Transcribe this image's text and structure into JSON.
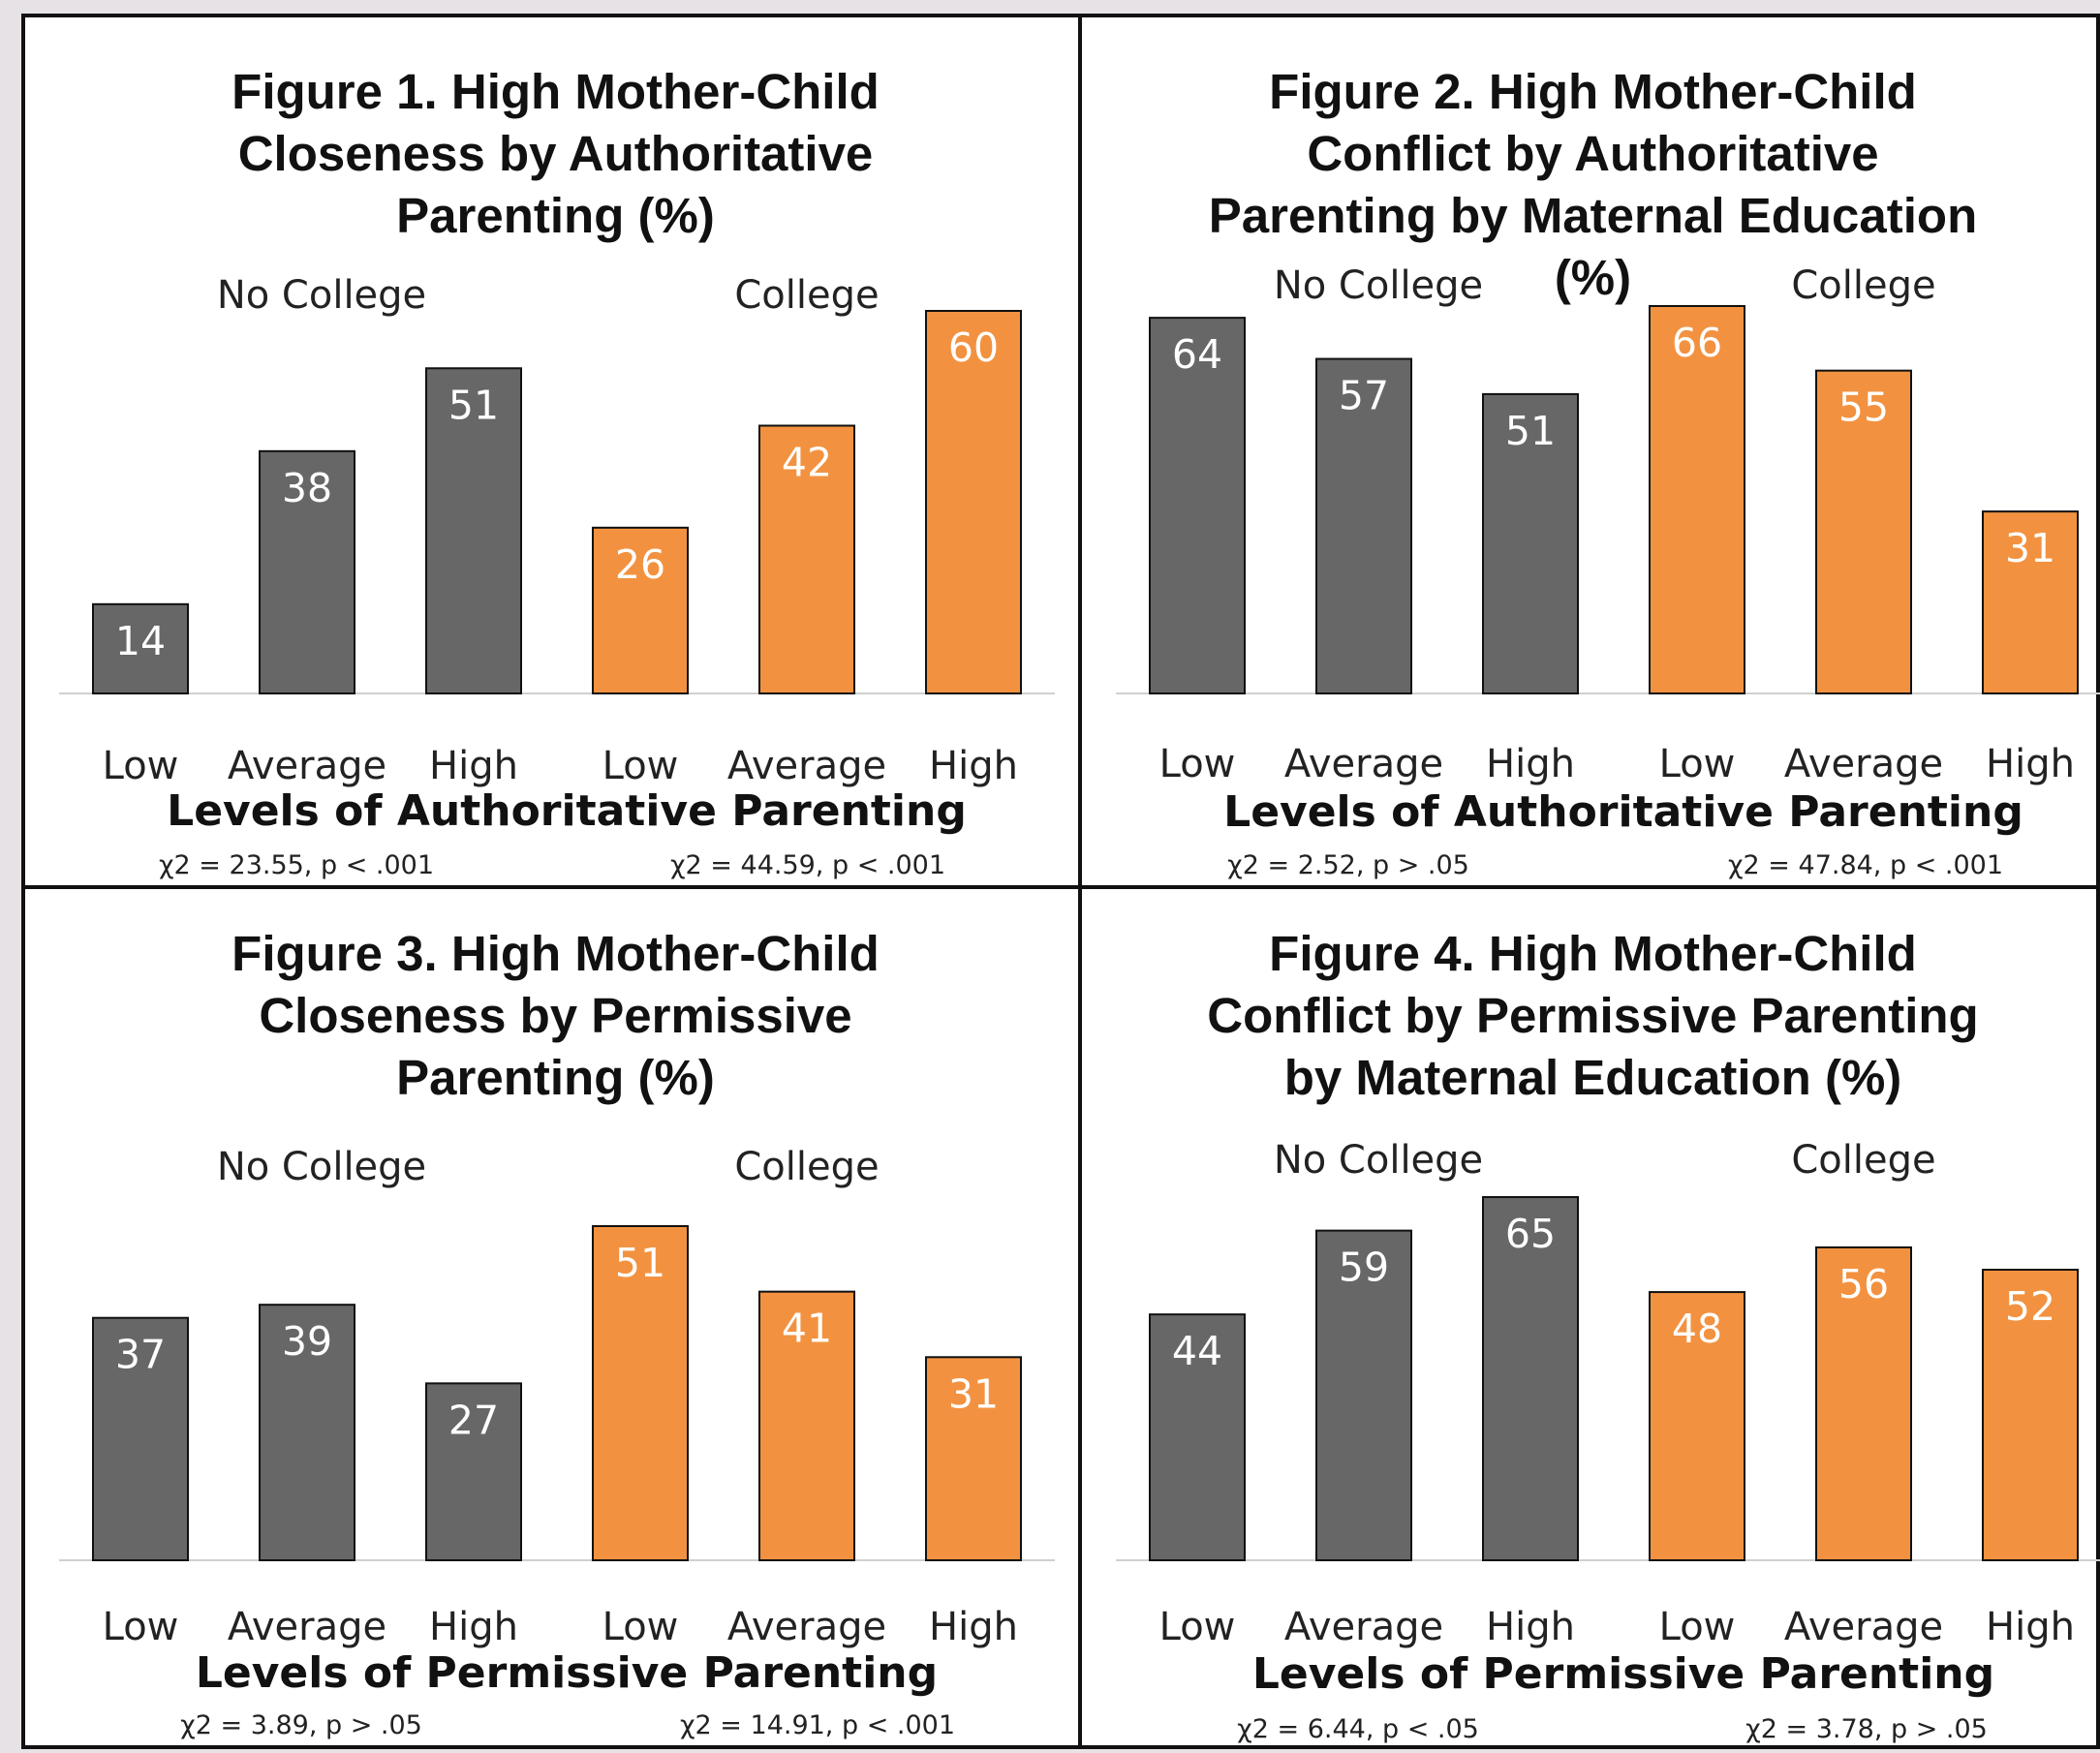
{
  "colors": {
    "no_college": "#676767",
    "college": "#f29240"
  },
  "chart_data": [
    {
      "type": "bar",
      "title_lines": [
        "Figure 1. High Mother-Child",
        "Closeness by Authoritative",
        "Parenting (%)"
      ],
      "groups": [
        "No College",
        "College"
      ],
      "categories": [
        "Low",
        "Average",
        "High",
        "Low",
        "Average",
        "High"
      ],
      "values": [
        14,
        38,
        51,
        26,
        42,
        60
      ],
      "xlabel": "Levels of Authoritative Parenting",
      "stats": [
        "χ2 = 23.55, p < .001",
        "χ2 = 44.59, p < .001"
      ],
      "ylim": [
        0,
        60
      ]
    },
    {
      "type": "bar",
      "title_lines": [
        "Figure 2. High Mother-Child",
        "Conflict by Authoritative",
        "Parenting by Maternal Education",
        "(%)"
      ],
      "groups": [
        "No College",
        "College"
      ],
      "categories": [
        "Low",
        "Average",
        "High",
        "Low",
        "Average",
        "High"
      ],
      "values": [
        64,
        57,
        51,
        66,
        55,
        31
      ],
      "xlabel": "Levels of Authoritative Parenting",
      "stats": [
        "χ2 = 2.52, p > .05",
        "χ2 = 47.84, p < .001"
      ],
      "ylim": [
        0,
        66
      ]
    },
    {
      "type": "bar",
      "title_lines": [
        "Figure 3. High Mother-Child",
        "Closeness by Permissive",
        "Parenting (%)"
      ],
      "groups": [
        "No College",
        "College"
      ],
      "categories": [
        "Low",
        "Average",
        "High",
        "Low",
        "Average",
        "High"
      ],
      "values": [
        37,
        39,
        27,
        51,
        41,
        31
      ],
      "xlabel": "Levels of Permissive Parenting",
      "stats": [
        "χ2 = 3.89, p > .05",
        "χ2 = 14.91, p < .001"
      ],
      "ylim": [
        0,
        51
      ]
    },
    {
      "type": "bar",
      "title_lines": [
        "Figure 4. High Mother-Child",
        "Conflict by Permissive Parenting",
        "by Maternal Education (%)"
      ],
      "groups": [
        "No College",
        "College"
      ],
      "categories": [
        "Low",
        "Average",
        "High",
        "Low",
        "Average",
        "High"
      ],
      "values": [
        44,
        59,
        65,
        48,
        56,
        52
      ],
      "xlabel": "Levels of Permissive Parenting",
      "stats": [
        "χ2 = 6.44, p < .05",
        "χ2 = 3.78, p > .05"
      ],
      "ylim": [
        0,
        65
      ]
    }
  ]
}
